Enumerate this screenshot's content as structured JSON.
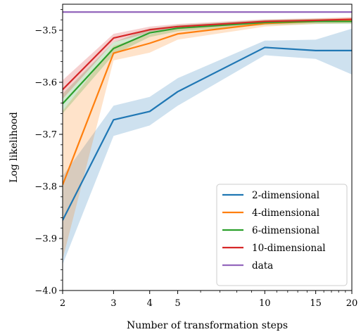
{
  "chart_data": {
    "type": "line",
    "xlabel": "Number of transformation steps",
    "ylabel": "Log likelihood",
    "xscale": "log",
    "xlim": [
      2,
      20
    ],
    "ylim": [
      -4.0,
      -3.45
    ],
    "x_ticks": [
      2,
      3,
      4,
      5,
      10,
      15,
      20
    ],
    "x_tick_labels": [
      "2",
      "3",
      "4",
      "5",
      "10",
      "15",
      "20"
    ],
    "y_ticks": [
      -4.0,
      -3.9,
      -3.8,
      -3.7,
      -3.6,
      -3.5
    ],
    "y_tick_labels": [
      "−4.0",
      "−3.9",
      "−3.8",
      "−3.7",
      "−3.6",
      "−3.5"
    ],
    "grid": false,
    "legend_position": "lower-right",
    "x": [
      2,
      3,
      4,
      5,
      10,
      15,
      20
    ],
    "series": [
      {
        "name": "2-dimensional",
        "color": "#1f77b4",
        "values": [
          -3.865,
          -3.672,
          -3.656,
          -3.618,
          -3.533,
          -3.539,
          -3.539
        ],
        "lower": [
          -3.95,
          -3.703,
          -3.683,
          -3.645,
          -3.548,
          -3.555,
          -3.585
        ],
        "upper": [
          -3.78,
          -3.645,
          -3.628,
          -3.592,
          -3.52,
          -3.518,
          -3.497
        ]
      },
      {
        "name": "4-dimensional",
        "color": "#ff7f0e",
        "values": [
          -3.797,
          -3.544,
          -3.525,
          -3.507,
          -3.487,
          -3.483,
          -3.481
        ],
        "lower": [
          -3.94,
          -3.558,
          -3.543,
          -3.518,
          -3.493,
          -3.488,
          -3.486
        ],
        "upper": [
          -3.655,
          -3.53,
          -3.508,
          -3.495,
          -3.481,
          -3.478,
          -3.476
        ]
      },
      {
        "name": "6-dimensional",
        "color": "#2ca02c",
        "values": [
          -3.641,
          -3.535,
          -3.505,
          -3.496,
          -3.485,
          -3.483,
          -3.483
        ],
        "lower": [
          -3.66,
          -3.547,
          -3.513,
          -3.502,
          -3.49,
          -3.488,
          -3.488
        ],
        "upper": [
          -3.622,
          -3.523,
          -3.497,
          -3.49,
          -3.48,
          -3.478,
          -3.478
        ]
      },
      {
        "name": "10-dimensional",
        "color": "#d62728",
        "values": [
          -3.614,
          -3.515,
          -3.499,
          -3.493,
          -3.483,
          -3.481,
          -3.479
        ],
        "lower": [
          -3.632,
          -3.523,
          -3.505,
          -3.498,
          -3.487,
          -3.485,
          -3.483
        ],
        "upper": [
          -3.596,
          -3.507,
          -3.493,
          -3.488,
          -3.479,
          -3.477,
          -3.475
        ]
      },
      {
        "name": "data",
        "color": "#9467bd",
        "values": [
          -3.465,
          -3.465,
          -3.465,
          -3.465,
          -3.465,
          -3.465,
          -3.465
        ]
      }
    ]
  }
}
